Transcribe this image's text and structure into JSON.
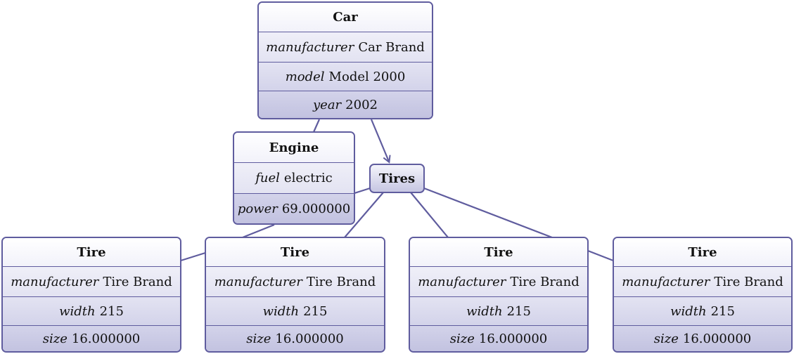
{
  "car": {
    "title": "Car",
    "manufacturer_key": "manufacturer",
    "manufacturer_val": "Car Brand",
    "model_key": "model",
    "model_val": "Model 2000",
    "year_key": "year",
    "year_val": "2002"
  },
  "engine": {
    "title": "Engine",
    "fuel_key": "fuel",
    "fuel_val": "electric",
    "power_key": "power",
    "power_val": "69.000000"
  },
  "tires": {
    "title": "Tires"
  },
  "tire_list": [
    {
      "title": "Tire",
      "manufacturer_key": "manufacturer",
      "manufacturer_val": "Tire Brand",
      "width_key": "width",
      "width_val": "215",
      "size_key": "size",
      "size_val": "16.000000"
    },
    {
      "title": "Tire",
      "manufacturer_key": "manufacturer",
      "manufacturer_val": "Tire Brand",
      "width_key": "width",
      "width_val": "215",
      "size_key": "size",
      "size_val": "16.000000"
    },
    {
      "title": "Tire",
      "manufacturer_key": "manufacturer",
      "manufacturer_val": "Tire Brand",
      "width_key": "width",
      "width_val": "215",
      "size_key": "size",
      "size_val": "16.000000"
    },
    {
      "title": "Tire",
      "manufacturer_key": "manufacturer",
      "manufacturer_val": "Tire Brand",
      "width_key": "width",
      "width_val": "215",
      "size_key": "size",
      "size_val": "16.000000"
    }
  ],
  "colors": {
    "stroke": "#5f5c9e",
    "fill_light": "#ffffff",
    "fill_dark": "#c2c2e0"
  }
}
